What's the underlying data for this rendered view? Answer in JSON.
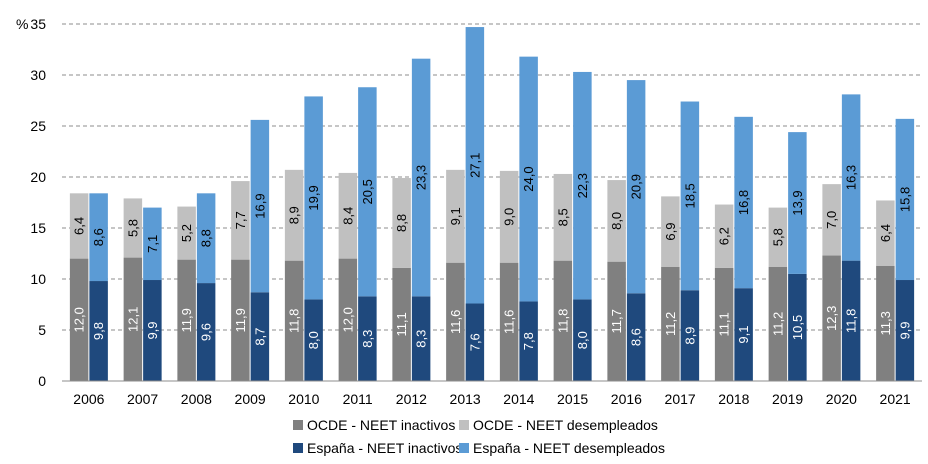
{
  "chart_data": {
    "type": "bar",
    "stacked": true,
    "ylabel": "%",
    "ylim": [
      0,
      35
    ],
    "yticks": [
      0,
      5,
      10,
      15,
      20,
      25,
      30,
      35
    ],
    "grid": "horizontal-dashed",
    "legend_position": "bottom",
    "categories": [
      "2006",
      "2007",
      "2008",
      "2009",
      "2010",
      "2011",
      "2012",
      "2013",
      "2014",
      "2015",
      "2016",
      "2017",
      "2018",
      "2019",
      "2020",
      "2021"
    ],
    "groups": [
      {
        "name": "OCDE",
        "series": [
          {
            "name": "OCDE - NEET inactivos",
            "color": "#808080",
            "label_color": "#ffffff",
            "values": [
              12.0,
              12.1,
              11.9,
              11.9,
              11.8,
              12.0,
              11.1,
              11.6,
              11.6,
              11.8,
              11.7,
              11.2,
              11.1,
              11.2,
              12.3,
              11.3
            ],
            "labels": [
              "12,0",
              "12,1",
              "11,9",
              "11,9",
              "11,8",
              "12,0",
              "11,1",
              "11,6",
              "11,6",
              "11,8",
              "11,7",
              "11,2",
              "11,1",
              "11,2",
              "12,3",
              "11,3"
            ]
          },
          {
            "name": "OCDE - NEET desempleados",
            "color": "#c0c0c0",
            "label_color": "#000000",
            "values": [
              6.4,
              5.8,
              5.2,
              7.7,
              8.9,
              8.4,
              8.8,
              9.1,
              9.0,
              8.5,
              8.0,
              6.9,
              6.2,
              5.8,
              7.0,
              6.4
            ],
            "labels": [
              "6,4",
              "5,8",
              "5,2",
              "7,7",
              "8,9",
              "8,4",
              "8,8",
              "9,1",
              "9,0",
              "8,5",
              "8,0",
              "6,9",
              "6,2",
              "5,8",
              "7,0",
              "6,4"
            ]
          }
        ]
      },
      {
        "name": "España",
        "series": [
          {
            "name": "España - NEET inactivos",
            "color": "#1f497d",
            "label_color": "#ffffff",
            "values": [
              9.8,
              9.9,
              9.6,
              8.7,
              8.0,
              8.3,
              8.3,
              7.6,
              7.8,
              8.0,
              8.6,
              8.9,
              9.1,
              10.5,
              11.8,
              9.9
            ],
            "labels": [
              "9,8",
              "9,9",
              "9,6",
              "8,7",
              "8,0",
              "8,3",
              "8,3",
              "7,6",
              "7,8",
              "8,0",
              "8,6",
              "8,9",
              "9,1",
              "10,5",
              "11,8",
              "9,9"
            ]
          },
          {
            "name": "España - NEET desempleados",
            "color": "#5b9bd5",
            "label_color": "#000000",
            "values": [
              8.6,
              7.1,
              8.8,
              16.9,
              19.9,
              20.5,
              23.3,
              27.1,
              24.0,
              22.3,
              20.9,
              18.5,
              16.8,
              13.9,
              16.3,
              15.8
            ],
            "labels": [
              "8,6",
              "7,1",
              "8,8",
              "16,9",
              "19,9",
              "20,5",
              "23,3",
              "27,1",
              "24,0",
              "22,3",
              "20,9",
              "18,5",
              "16,8",
              "13,9",
              "16,3",
              "15,8"
            ]
          }
        ]
      }
    ]
  }
}
